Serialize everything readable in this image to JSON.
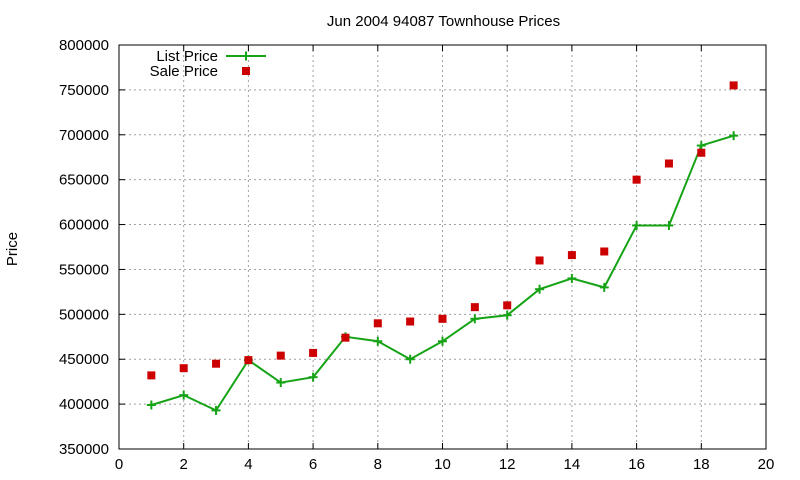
{
  "chart_data": {
    "type": "line",
    "title": "Jun 2004 94087 Townhouse Prices",
    "xlabel": "",
    "ylabel": "Price",
    "xlim": [
      0,
      20
    ],
    "ylim": [
      350000,
      800000
    ],
    "x_ticks": [
      0,
      2,
      4,
      6,
      8,
      10,
      12,
      14,
      16,
      18,
      20
    ],
    "y_ticks": [
      350000,
      400000,
      450000,
      500000,
      550000,
      600000,
      650000,
      700000,
      750000,
      800000
    ],
    "grid": true,
    "legend_position": "top-left",
    "series": [
      {
        "name": "List Price",
        "style": "line-with-plus-markers",
        "color": "#16a316",
        "x": [
          1,
          2,
          3,
          4,
          5,
          6,
          7,
          8,
          9,
          10,
          11,
          12,
          13,
          14,
          15,
          16,
          17,
          18,
          19
        ],
        "y": [
          399000,
          410000,
          393000,
          449000,
          424000,
          430000,
          475000,
          470000,
          450000,
          470000,
          495000,
          499000,
          528000,
          540000,
          530000,
          599000,
          599000,
          688000,
          699000
        ]
      },
      {
        "name": "Sale Price",
        "style": "square-markers",
        "color": "#cc0000",
        "x": [
          1,
          2,
          3,
          4,
          5,
          6,
          7,
          8,
          9,
          10,
          11,
          12,
          13,
          14,
          15,
          16,
          17,
          18,
          19
        ],
        "y": [
          432000,
          440000,
          445000,
          449000,
          454000,
          457000,
          474000,
          490000,
          492000,
          495000,
          508000,
          510000,
          560000,
          566000,
          570000,
          650000,
          668000,
          680000,
          755000
        ]
      }
    ]
  }
}
